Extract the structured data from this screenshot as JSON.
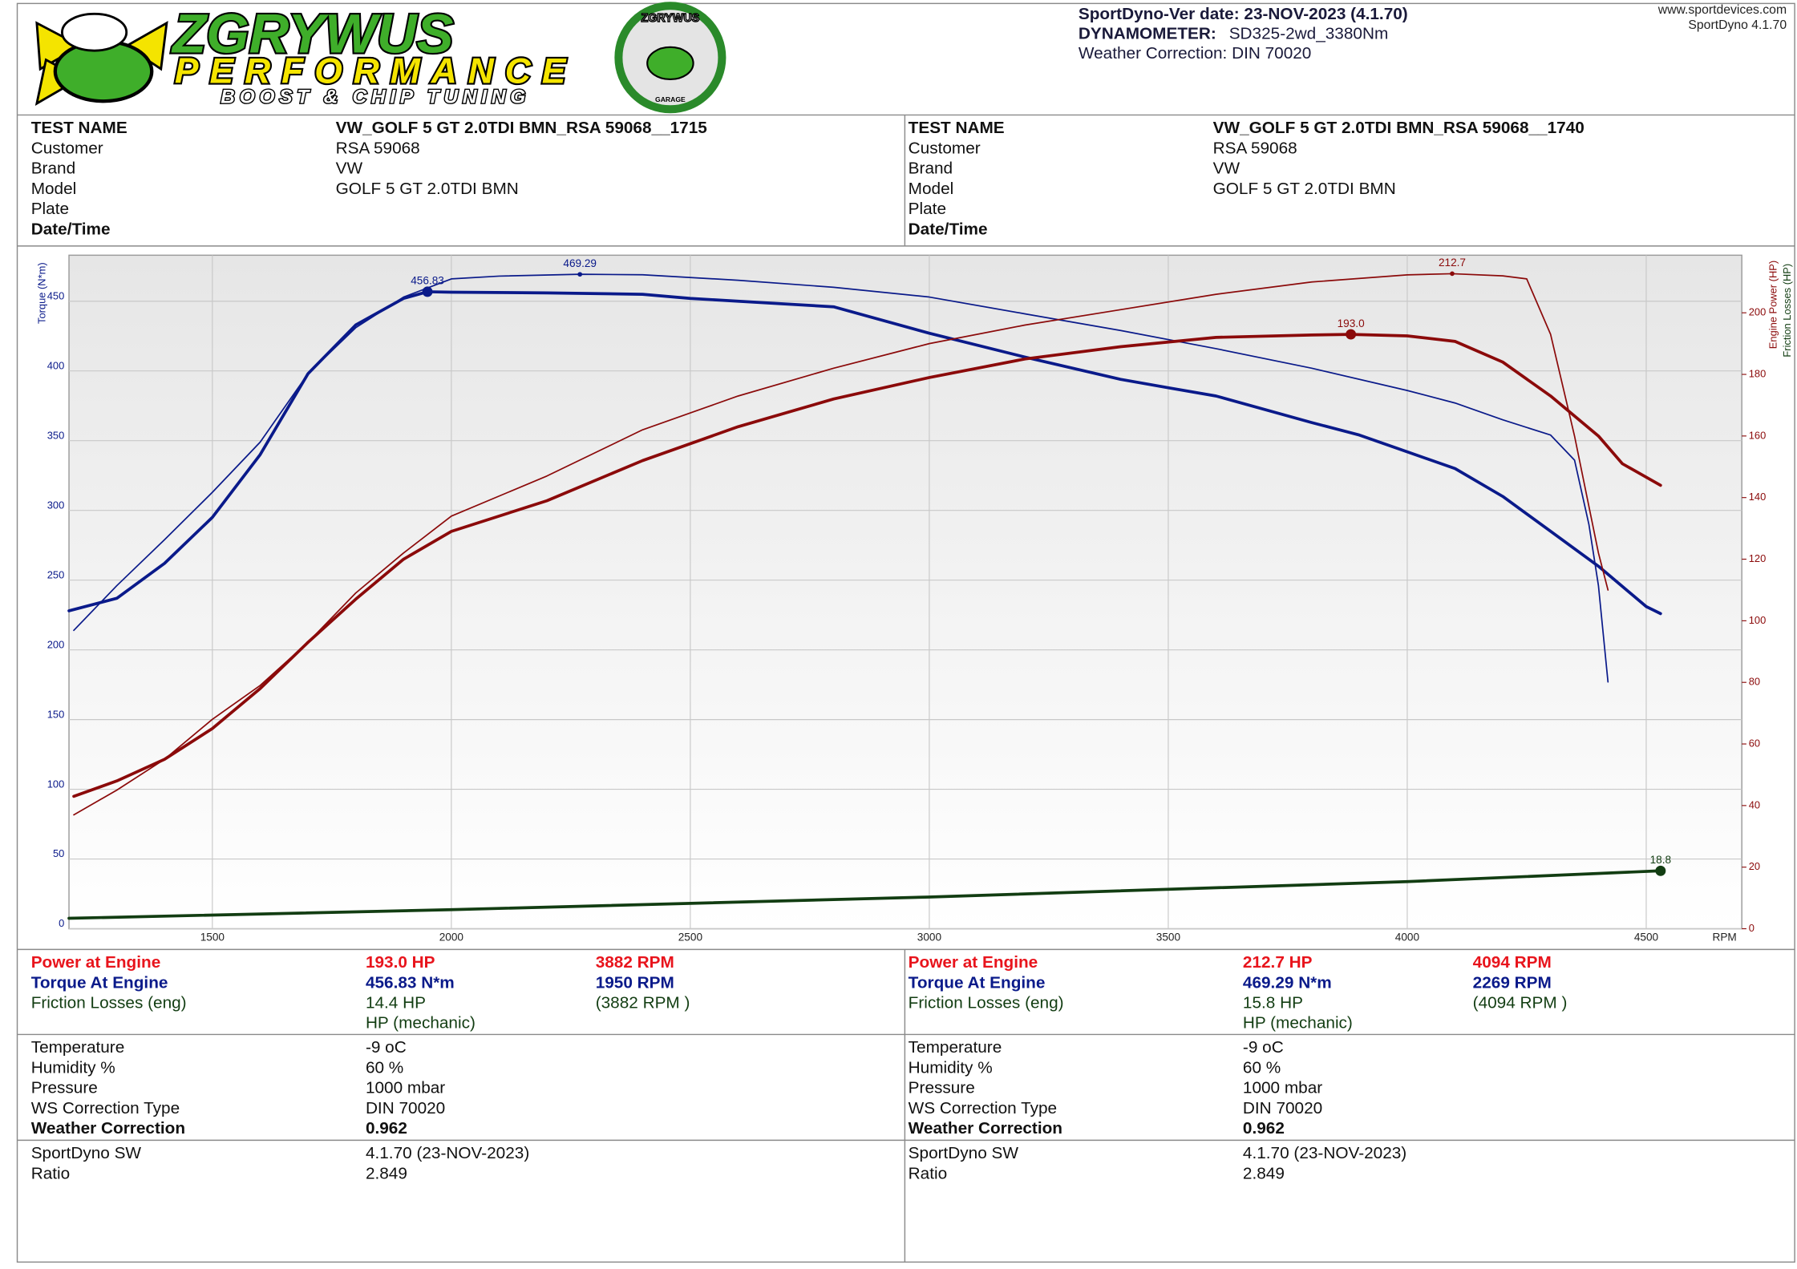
{
  "header": {
    "logo_title": "ZGRYWUS",
    "logo_subtitle": "PERFORMANCE",
    "logo_tagline": "BOOST & CHIP TUNING",
    "badge_title": "ZGRYWUS",
    "badge_subtitle": "GARAGE",
    "version_line": "SportDyno-Ver date: 23-NOV-2023 (4.1.70)",
    "dynamometer_label": "DYNAMOMETER:",
    "dynamometer": "SD325-2wd_3380Nm",
    "weather": "Weather Correction: DIN 70020",
    "website": "www.sportdevices.com",
    "software": "SportDyno 4.1.70"
  },
  "runs": [
    {
      "info": [
        [
          "TEST NAME",
          "VW_GOLF 5 GT 2.0TDI BMN_RSA 59068__1715"
        ],
        [
          "Customer",
          "RSA 59068"
        ],
        [
          "Brand",
          "VW"
        ],
        [
          "Model",
          "GOLF 5 GT 2.0TDI BMN"
        ],
        [
          "Plate"
        ],
        [
          "Date/Time"
        ]
      ],
      "results": [
        [
          "Power at Engine",
          "193.0 HP",
          "3882 RPM"
        ],
        [
          "Torque At Engine",
          "456.83 N*m",
          "1950 RPM"
        ],
        [
          "Friction Losses (eng)",
          "14.4 HP",
          "(3882 RPM )"
        ]
      ],
      "friction_unit": "HP (mechanic)",
      "conditions": [
        [
          "Temperature",
          "-9 oC"
        ],
        [
          "Humidity %",
          "60 %"
        ],
        [
          "Pressure",
          "1000 mbar"
        ],
        [
          "WS Correction Type",
          "DIN 70020"
        ],
        [
          "Weather Correction",
          "0.962"
        ]
      ],
      "software": [
        [
          "SportDyno SW",
          "4.1.70 (23-NOV-2023)"
        ],
        [
          "Ratio",
          "2.849"
        ]
      ]
    },
    {
      "info": [
        [
          "TEST NAME",
          "VW_GOLF 5 GT 2.0TDI BMN_RSA 59068__1740"
        ],
        [
          "Customer",
          "RSA 59068"
        ],
        [
          "Brand",
          "VW"
        ],
        [
          "Model",
          "GOLF 5 GT 2.0TDI BMN"
        ],
        [
          "Plate"
        ],
        [
          "Date/Time"
        ]
      ],
      "results": [
        [
          "Power at Engine",
          "212.7 HP",
          "4094 RPM"
        ],
        [
          "Torque At Engine",
          "469.29 N*m",
          "2269 RPM"
        ],
        [
          "Friction Losses (eng)",
          "15.8 HP",
          "(4094 RPM )"
        ]
      ],
      "friction_unit": "HP (mechanic)",
      "conditions": [
        [
          "Temperature",
          "-9 oC"
        ],
        [
          "Humidity %",
          "60 %"
        ],
        [
          "Pressure",
          "1000 mbar"
        ],
        [
          "WS Correction Type",
          "DIN 70020"
        ],
        [
          "Weather Correction",
          "0.962"
        ]
      ],
      "software": [
        [
          "SportDyno SW",
          "4.1.70 (23-NOV-2023)"
        ],
        [
          "Ratio",
          "2.849"
        ]
      ]
    }
  ],
  "chart_data": {
    "type": "line",
    "x_label": "RPM",
    "y_label": "Torque (N*m)",
    "y2_label": "Engine Power (HP)",
    "y2_label_2": "Friction Losses (HP)",
    "xlim": [
      1200,
      4700
    ],
    "xticks": [
      1500,
      2000,
      2500,
      3000,
      3500,
      4000,
      4500
    ],
    "ylim": [
      0,
      483
    ],
    "yticks": [
      0,
      50,
      100,
      150,
      200,
      250,
      300,
      350,
      400,
      450
    ],
    "y2lim": [
      0,
      218.7
    ],
    "y2ticks": [
      0,
      20,
      40,
      60,
      80,
      100,
      120,
      140,
      160,
      180,
      200
    ],
    "grid": true,
    "series": [
      {
        "color": "#0a1a8a",
        "width": 2.6,
        "axis": "y",
        "x": [
          1200,
          1300,
          1400,
          1500,
          1600,
          1700,
          1800,
          1900,
          1950,
          2000,
          2200,
          2400,
          2500,
          2600,
          2800,
          3000,
          3200,
          3400,
          3500,
          3600,
          3800,
          3900,
          4000,
          4100,
          4200,
          4300,
          4400,
          4500,
          4530
        ],
        "values": [
          228,
          237,
          262,
          295,
          340,
          398,
          433,
          452,
          456.83,
          456.5,
          456,
          455,
          452,
          450,
          446,
          427,
          410,
          394,
          388,
          382,
          363,
          354,
          342,
          330,
          310,
          285,
          260,
          231,
          226
        ]
      },
      {
        "color": "#0a1a8a",
        "width": 1.2,
        "axis": "y",
        "x": [
          1210,
          1300,
          1400,
          1500,
          1600,
          1700,
          1800,
          1900,
          2000,
          2100,
          2269,
          2400,
          2600,
          2800,
          3000,
          3200,
          3400,
          3600,
          3800,
          4000,
          4100,
          4200,
          4300,
          4350,
          4380,
          4400,
          4420
        ],
        "values": [
          214,
          246,
          279,
          313,
          349,
          398,
          431,
          453,
          466,
          468,
          469.29,
          469,
          465,
          460,
          453,
          441,
          429,
          416,
          402,
          386,
          377,
          365,
          354,
          336,
          290,
          246,
          177
        ]
      },
      {
        "color": "#8b0a0a",
        "width": 2.6,
        "axis": "y2",
        "x": [
          1210,
          1300,
          1400,
          1500,
          1600,
          1700,
          1800,
          1900,
          2000,
          2200,
          2400,
          2600,
          2800,
          3000,
          3200,
          3400,
          3600,
          3800,
          3882,
          4000,
          4100,
          4200,
          4300,
          4400,
          4450,
          4530
        ],
        "values": [
          43,
          48,
          55,
          65,
          78,
          93,
          107,
          120,
          129,
          139,
          152,
          163,
          172,
          179,
          185,
          189,
          192,
          192.8,
          193.0,
          192.5,
          190.7,
          184,
          173,
          160,
          151,
          144
        ]
      },
      {
        "color": "#8b0a0a",
        "width": 1.2,
        "axis": "y2",
        "x": [
          1210,
          1300,
          1400,
          1500,
          1600,
          1700,
          1800,
          1900,
          2000,
          2200,
          2400,
          2600,
          2800,
          3000,
          3200,
          3400,
          3600,
          3800,
          4000,
          4094,
          4200,
          4250,
          4300,
          4350,
          4400,
          4420
        ],
        "values": [
          37,
          45,
          55,
          68,
          79,
          93,
          109,
          122,
          134,
          147,
          162,
          173,
          182,
          190,
          196,
          201,
          206,
          210,
          212.3,
          212.7,
          212,
          211,
          193,
          160,
          122,
          110
        ]
      },
      {
        "color": "#123d12",
        "width": 2.6,
        "axis": "y2",
        "x": [
          1200,
          2000,
          3000,
          4000,
          4530
        ],
        "values": [
          3.4,
          6.2,
          10.3,
          15.3,
          18.8
        ]
      }
    ],
    "annotations": [
      {
        "x": 1950,
        "y": 456.83,
        "axis": "y",
        "color": "#0a1a8a",
        "marker": "large"
      },
      {
        "x": 2269,
        "y": 469.29,
        "axis": "y",
        "color": "#0a1a8a",
        "marker": "small"
      },
      {
        "x": 3882,
        "y": 193.0,
        "label": "193.0",
        "axis": "y2",
        "color": "#8b0a0a",
        "marker": "large"
      },
      {
        "x": 4094,
        "y": 212.7,
        "axis": "y2",
        "color": "#8b0a0a",
        "marker": "small"
      },
      {
        "x": 4530,
        "y": 18.8,
        "axis": "y2",
        "color": "#123d12",
        "marker": "large"
      }
    ]
  }
}
